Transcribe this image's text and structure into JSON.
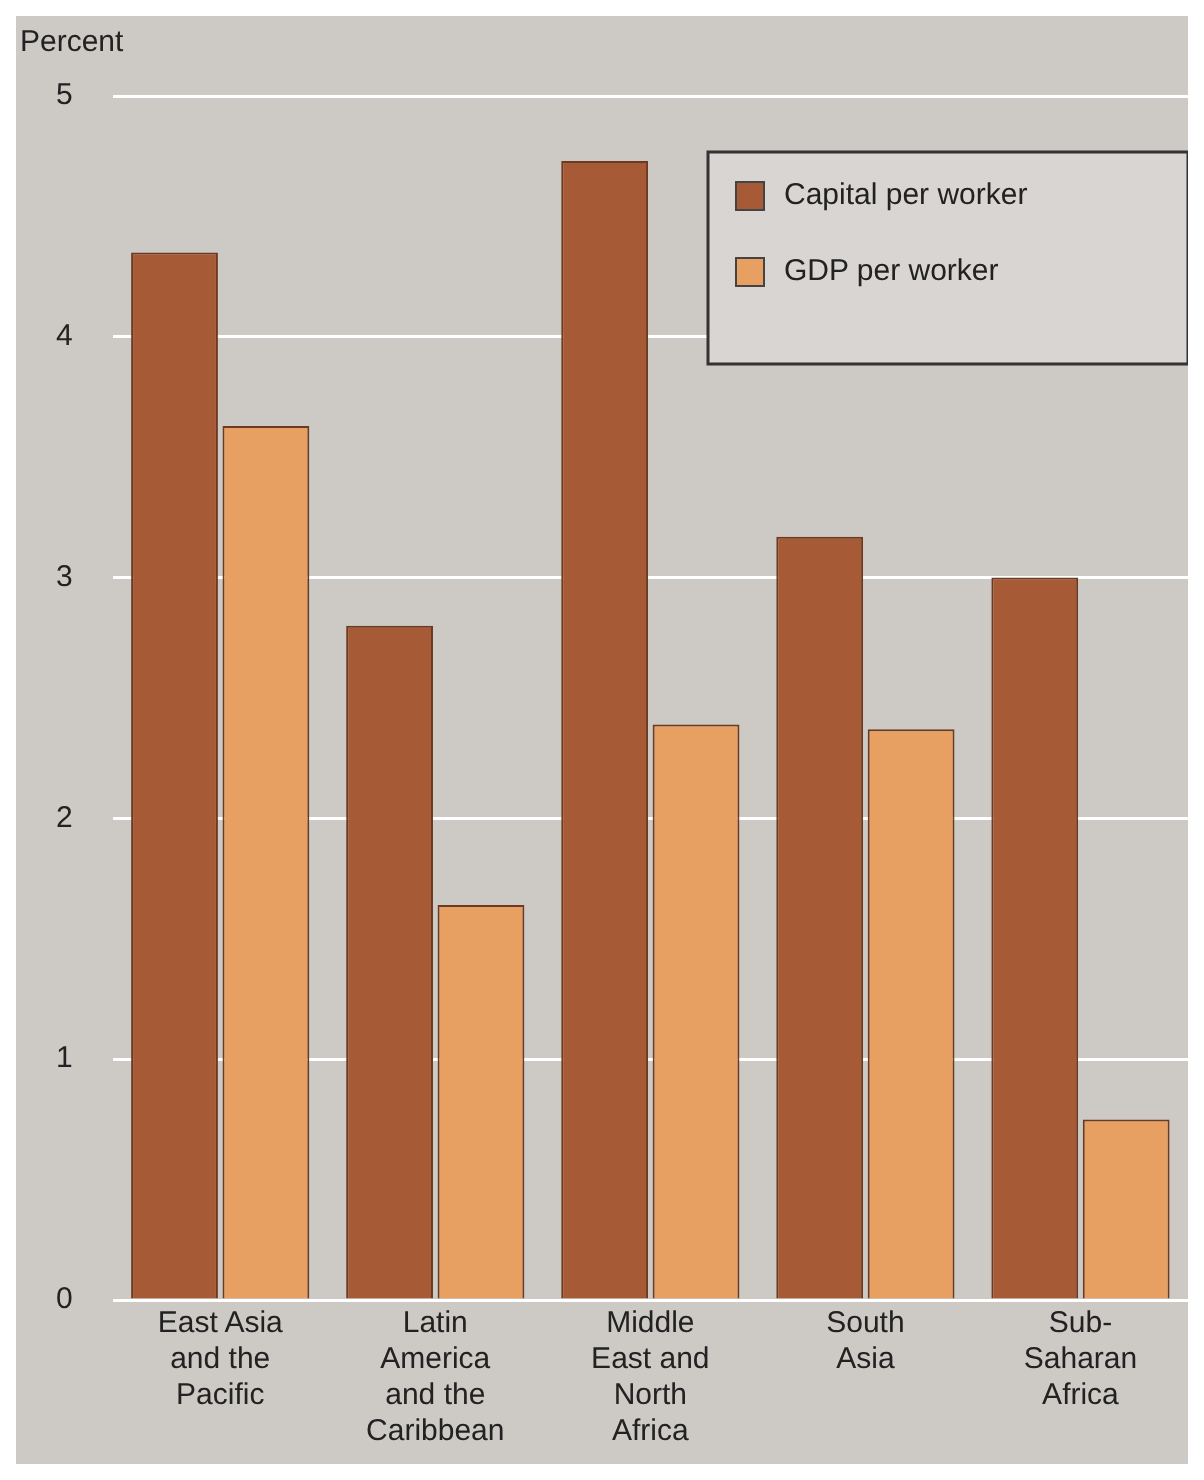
{
  "chart_data": {
    "type": "bar",
    "ylabel": "Percent",
    "categories": [
      "East Asia\nand the\nPacific",
      "Latin\nAmerica\nand the\nCaribbean",
      "Middle\nEast and\nNorth\nAfrica",
      "South\nAsia",
      "Sub-\nSaharan\nAfrica"
    ],
    "series": [
      {
        "name": "Capital per worker",
        "color": "#a65a36",
        "values": [
          4.35,
          2.8,
          4.73,
          3.17,
          3.0
        ]
      },
      {
        "name": "GDP per worker",
        "color": "#e7a062",
        "values": [
          3.63,
          1.64,
          2.39,
          2.37,
          0.75
        ]
      }
    ],
    "ylim": [
      0,
      5
    ],
    "yticks": [
      0,
      1,
      2,
      3,
      4,
      5
    ],
    "grid": "y",
    "legend": "top right"
  }
}
